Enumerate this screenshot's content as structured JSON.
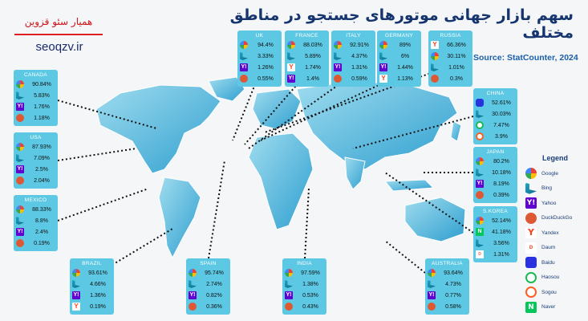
{
  "title": "سهم بازار جهانی موتورهای جستجو در مناطق مختلف",
  "source": "Source: StatCounter, 2024",
  "brand": {
    "persian": "همیار سئو قزوین",
    "site": "seoqzv.ir"
  },
  "legend": {
    "title": "Legend",
    "items": [
      {
        "label": "Google",
        "icon": "google-icon"
      },
      {
        "label": "Bing",
        "icon": "bing-icon"
      },
      {
        "label": "Yahoo",
        "icon": "yahoo-icon"
      },
      {
        "label": "DuckDuckGo",
        "icon": "duckduckgo-icon"
      },
      {
        "label": "Yandex",
        "icon": "yandex-icon"
      },
      {
        "label": "Daum",
        "icon": "daum-icon"
      },
      {
        "label": "Baidu",
        "icon": "baidu-icon"
      },
      {
        "label": "Haosou",
        "icon": "haosou-icon"
      },
      {
        "label": "Sogou",
        "icon": "sogou-icon"
      },
      {
        "label": "Naver",
        "icon": "naver-icon"
      }
    ]
  },
  "countries": [
    {
      "name": "CANADA",
      "rows": [
        {
          "engine": "google",
          "value": "90.84%"
        },
        {
          "engine": "bing",
          "value": "5.83%"
        },
        {
          "engine": "yahoo",
          "value": "1.76%"
        },
        {
          "engine": "duck",
          "value": "1.18%"
        }
      ]
    },
    {
      "name": "USA",
      "rows": [
        {
          "engine": "google",
          "value": "87.93%"
        },
        {
          "engine": "bing",
          "value": "7.09%"
        },
        {
          "engine": "yahoo",
          "value": "2.5%"
        },
        {
          "engine": "duck",
          "value": "2.04%"
        }
      ]
    },
    {
      "name": "MEXICO",
      "rows": [
        {
          "engine": "google",
          "value": "88.33%"
        },
        {
          "engine": "bing",
          "value": "8.8%"
        },
        {
          "engine": "yahoo",
          "value": "2.4%"
        },
        {
          "engine": "duck",
          "value": "0.19%"
        }
      ]
    },
    {
      "name": "BRAZIL",
      "rows": [
        {
          "engine": "google",
          "value": "93.61%"
        },
        {
          "engine": "bing",
          "value": "4.66%"
        },
        {
          "engine": "yahoo",
          "value": "1.36%"
        },
        {
          "engine": "yandex",
          "value": "0.19%"
        }
      ]
    },
    {
      "name": "SPAIN",
      "rows": [
        {
          "engine": "google",
          "value": "95.74%"
        },
        {
          "engine": "bing",
          "value": "2.74%"
        },
        {
          "engine": "yahoo",
          "value": "0.82%"
        },
        {
          "engine": "duck",
          "value": "0.36%"
        }
      ]
    },
    {
      "name": "INDIA",
      "rows": [
        {
          "engine": "google",
          "value": "97.59%"
        },
        {
          "engine": "bing",
          "value": "1.38%"
        },
        {
          "engine": "yahoo",
          "value": "0.53%"
        },
        {
          "engine": "duck",
          "value": "0.43%"
        }
      ]
    },
    {
      "name": "AUSTRALIA",
      "rows": [
        {
          "engine": "google",
          "value": "93.64%"
        },
        {
          "engine": "bing",
          "value": "4.73%"
        },
        {
          "engine": "yahoo",
          "value": "0.77%"
        },
        {
          "engine": "duck",
          "value": "0.58%"
        }
      ]
    },
    {
      "name": "UK",
      "rows": [
        {
          "engine": "google",
          "value": "94.4%"
        },
        {
          "engine": "bing",
          "value": "3.33%"
        },
        {
          "engine": "yahoo",
          "value": "1.26%"
        },
        {
          "engine": "duck",
          "value": "0.55%"
        }
      ]
    },
    {
      "name": "FRANCE",
      "rows": [
        {
          "engine": "google",
          "value": "88.03%"
        },
        {
          "engine": "bing",
          "value": "5.89%"
        },
        {
          "engine": "yandex",
          "value": "1.74%"
        },
        {
          "engine": "yahoo",
          "value": "1.4%"
        }
      ]
    },
    {
      "name": "ITALY",
      "rows": [
        {
          "engine": "google",
          "value": "92.91%"
        },
        {
          "engine": "bing",
          "value": "4.37%"
        },
        {
          "engine": "yahoo",
          "value": "1.31%"
        },
        {
          "engine": "duck",
          "value": "0.59%"
        }
      ]
    },
    {
      "name": "GERMANY",
      "rows": [
        {
          "engine": "google",
          "value": "89%"
        },
        {
          "engine": "bing",
          "value": "6%"
        },
        {
          "engine": "yahoo",
          "value": "1.44%"
        },
        {
          "engine": "yandex",
          "value": "1.13%"
        }
      ]
    },
    {
      "name": "RUSSIA",
      "rows": [
        {
          "engine": "yandex",
          "value": "66.36%"
        },
        {
          "engine": "google",
          "value": "30.11%"
        },
        {
          "engine": "bing",
          "value": "1.01%"
        },
        {
          "engine": "duck",
          "value": "0.3%"
        }
      ]
    },
    {
      "name": "CHINA",
      "rows": [
        {
          "engine": "baidu",
          "value": "52.61%"
        },
        {
          "engine": "bing",
          "value": "30.03%"
        },
        {
          "engine": "haosou",
          "value": "7.47%"
        },
        {
          "engine": "sogou",
          "value": "3.9%"
        }
      ]
    },
    {
      "name": "JAPAN",
      "rows": [
        {
          "engine": "google",
          "value": "80.2%"
        },
        {
          "engine": "bing",
          "value": "10.18%"
        },
        {
          "engine": "yahoo",
          "value": "8.19%"
        },
        {
          "engine": "duck",
          "value": "0.39%"
        }
      ]
    },
    {
      "name": "S.KOREA",
      "rows": [
        {
          "engine": "google",
          "value": "52.14%"
        },
        {
          "engine": "naver",
          "value": "41.18%"
        },
        {
          "engine": "bing",
          "value": "3.56%"
        },
        {
          "engine": "daum",
          "value": "1.31%"
        }
      ]
    }
  ]
}
